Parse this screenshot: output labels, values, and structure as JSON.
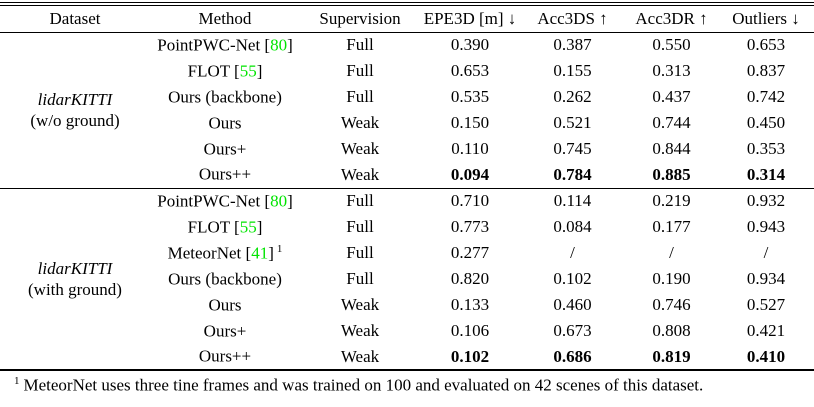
{
  "colors": {
    "background": "#ffffff",
    "text": "#000000",
    "citation_green": "#00e400"
  },
  "table": {
    "headers": [
      "Dataset",
      "Method",
      "Supervision",
      "EPE3D [m] ↓",
      "Acc3DS ↑",
      "Acc3DR ↑",
      "Outliers ↓"
    ],
    "groups": [
      {
        "dataset_line1": "lidarKITTI",
        "dataset_line2": "(w/o ground)",
        "rows": [
          {
            "method_pre": "PointPWC-Net [",
            "method_cite": "80",
            "method_post": "]",
            "method_sup": "",
            "supervision": "Full",
            "epe3d": "0.390",
            "acc3ds": "0.387",
            "acc3dr": "0.550",
            "outliers": "0.653",
            "bold": false
          },
          {
            "method_pre": "FLOT [",
            "method_cite": "55",
            "method_post": "]",
            "method_sup": "",
            "supervision": "Full",
            "epe3d": "0.653",
            "acc3ds": "0.155",
            "acc3dr": "0.313",
            "outliers": "0.837",
            "bold": false
          },
          {
            "method_pre": "Ours (backbone)",
            "method_cite": "",
            "method_post": "",
            "method_sup": "",
            "supervision": "Full",
            "epe3d": "0.535",
            "acc3ds": "0.262",
            "acc3dr": "0.437",
            "outliers": "0.742",
            "bold": false
          },
          {
            "method_pre": "Ours",
            "method_cite": "",
            "method_post": "",
            "method_sup": "",
            "supervision": "Weak",
            "epe3d": "0.150",
            "acc3ds": "0.521",
            "acc3dr": "0.744",
            "outliers": "0.450",
            "bold": false
          },
          {
            "method_pre": "Ours+",
            "method_cite": "",
            "method_post": "",
            "method_sup": "",
            "supervision": "Weak",
            "epe3d": "0.110",
            "acc3ds": "0.745",
            "acc3dr": "0.844",
            "outliers": "0.353",
            "bold": false
          },
          {
            "method_pre": "Ours++",
            "method_cite": "",
            "method_post": "",
            "method_sup": "",
            "supervision": "Weak",
            "epe3d": "0.094",
            "acc3ds": "0.784",
            "acc3dr": "0.885",
            "outliers": "0.314",
            "bold": true
          }
        ]
      },
      {
        "dataset_line1": "lidarKITTI",
        "dataset_line2": "(with ground)",
        "rows": [
          {
            "method_pre": "PointPWC-Net [",
            "method_cite": "80",
            "method_post": "]",
            "method_sup": "",
            "supervision": "Full",
            "epe3d": "0.710",
            "acc3ds": "0.114",
            "acc3dr": "0.219",
            "outliers": "0.932",
            "bold": false
          },
          {
            "method_pre": "FLOT [",
            "method_cite": "55",
            "method_post": "]",
            "method_sup": "",
            "supervision": "Full",
            "epe3d": "0.773",
            "acc3ds": "0.084",
            "acc3dr": "0.177",
            "outliers": "0.943",
            "bold": false
          },
          {
            "method_pre": "MeteorNet [",
            "method_cite": "41",
            "method_post": "]",
            "method_sup": "1",
            "supervision": "Full",
            "epe3d": "0.277",
            "acc3ds": "/",
            "acc3dr": "/",
            "outliers": "/",
            "bold": false
          },
          {
            "method_pre": "Ours (backbone)",
            "method_cite": "",
            "method_post": "",
            "method_sup": "",
            "supervision": "Full",
            "epe3d": "0.820",
            "acc3ds": "0.102",
            "acc3dr": "0.190",
            "outliers": "0.934",
            "bold": false
          },
          {
            "method_pre": "Ours",
            "method_cite": "",
            "method_post": "",
            "method_sup": "",
            "supervision": "Weak",
            "epe3d": "0.133",
            "acc3ds": "0.460",
            "acc3dr": "0.746",
            "outliers": "0.527",
            "bold": false
          },
          {
            "method_pre": "Ours+",
            "method_cite": "",
            "method_post": "",
            "method_sup": "",
            "supervision": "Weak",
            "epe3d": "0.106",
            "acc3ds": "0.673",
            "acc3dr": "0.808",
            "outliers": "0.421",
            "bold": false
          },
          {
            "method_pre": "Ours++",
            "method_cite": "",
            "method_post": "",
            "method_sup": "",
            "supervision": "Weak",
            "epe3d": "0.102",
            "acc3ds": "0.686",
            "acc3dr": "0.819",
            "outliers": "0.410",
            "bold": true
          }
        ]
      }
    ],
    "footnote_sup": "1",
    "footnote_text": "MeteorNet uses three tine frames and was trained on 100 and evaluated on 42 scenes of this dataset."
  }
}
